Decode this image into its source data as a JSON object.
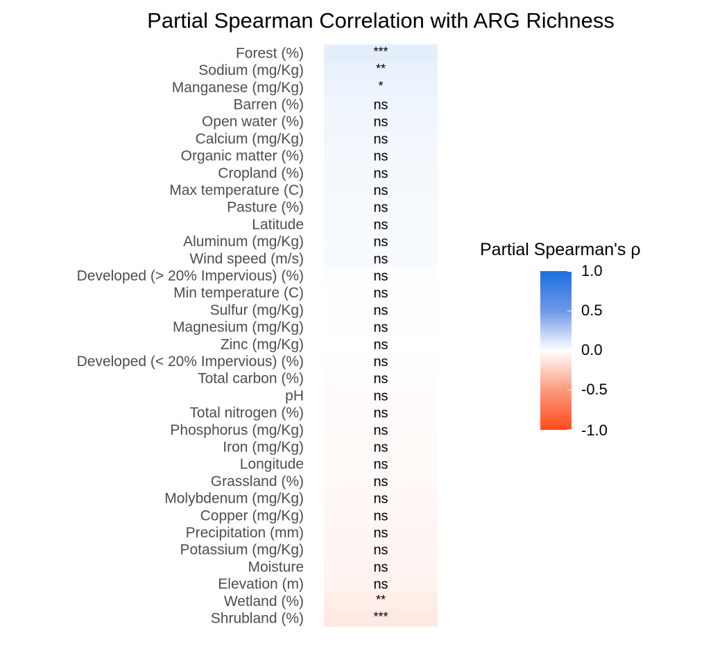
{
  "chart_data": {
    "type": "heatmap",
    "title": "Partial Spearman Correlation with ARG Richness",
    "legend": {
      "title": "Partial Spearman's ρ",
      "ticks": [
        "1.0",
        "0.5",
        "0.0",
        "-0.5",
        "-1.0"
      ],
      "range": [
        -1,
        1
      ],
      "colors": {
        "high": "#1a6fe0",
        "mid": "#ffffff",
        "low": "#ff4a1c"
      },
      "placement": "right"
    },
    "rows": [
      {
        "label": "Forest (%)",
        "rho": 0.12,
        "sig": "***"
      },
      {
        "label": "Sodium (mg/Kg)",
        "rho": 0.1,
        "sig": "**"
      },
      {
        "label": "Manganese (mg/Kg)",
        "rho": 0.08,
        "sig": "*"
      },
      {
        "label": "Barren (%)",
        "rho": 0.065,
        "sig": "ns"
      },
      {
        "label": "Open water (%)",
        "rho": 0.06,
        "sig": "ns"
      },
      {
        "label": "Calcium (mg/Kg)",
        "rho": 0.055,
        "sig": "ns"
      },
      {
        "label": "Organic matter (%)",
        "rho": 0.05,
        "sig": "ns"
      },
      {
        "label": "Cropland (%)",
        "rho": 0.045,
        "sig": "ns"
      },
      {
        "label": "Max temperature (C)",
        "rho": 0.045,
        "sig": "ns"
      },
      {
        "label": "Pasture (%)",
        "rho": 0.04,
        "sig": "ns"
      },
      {
        "label": "Latitude",
        "rho": 0.04,
        "sig": "ns"
      },
      {
        "label": "Aluminum (mg/Kg)",
        "rho": 0.035,
        "sig": "ns"
      },
      {
        "label": "Wind speed (m/s)",
        "rho": 0.03,
        "sig": "ns"
      },
      {
        "label": "Developed (> 20% Impervious) (%)",
        "rho": 0.015,
        "sig": "ns"
      },
      {
        "label": "Min temperature (C)",
        "rho": 0.01,
        "sig": "ns"
      },
      {
        "label": "Sulfur (mg/Kg)",
        "rho": 0.008,
        "sig": "ns"
      },
      {
        "label": "Magnesium (mg/Kg)",
        "rho": 0.005,
        "sig": "ns"
      },
      {
        "label": "Zinc (mg/Kg)",
        "rho": 0.002,
        "sig": "ns"
      },
      {
        "label": "Developed (< 20% Impervious) (%)",
        "rho": -0.01,
        "sig": "ns"
      },
      {
        "label": "Total carbon (%)",
        "rho": -0.015,
        "sig": "ns"
      },
      {
        "label": "pH",
        "rho": -0.02,
        "sig": "ns"
      },
      {
        "label": "Total nitrogen (%)",
        "rho": -0.02,
        "sig": "ns"
      },
      {
        "label": "Phosphorus (mg/Kg)",
        "rho": -0.025,
        "sig": "ns"
      },
      {
        "label": "Iron (mg/Kg)",
        "rho": -0.03,
        "sig": "ns"
      },
      {
        "label": "Longitude",
        "rho": -0.03,
        "sig": "ns"
      },
      {
        "label": "Grassland (%)",
        "rho": -0.035,
        "sig": "ns"
      },
      {
        "label": "Molybdenum (mg/Kg)",
        "rho": -0.04,
        "sig": "ns"
      },
      {
        "label": "Copper (mg/Kg)",
        "rho": -0.045,
        "sig": "ns"
      },
      {
        "label": "Precipitation (mm)",
        "rho": -0.05,
        "sig": "ns"
      },
      {
        "label": "Potassium (mg/Kg)",
        "rho": -0.055,
        "sig": "ns"
      },
      {
        "label": "Moisture",
        "rho": -0.06,
        "sig": "ns"
      },
      {
        "label": "Elevation (m)",
        "rho": -0.065,
        "sig": "ns"
      },
      {
        "label": "Wetland (%)",
        "rho": -0.1,
        "sig": "**"
      },
      {
        "label": "Shrubland (%)",
        "rho": -0.12,
        "sig": "***"
      }
    ]
  }
}
